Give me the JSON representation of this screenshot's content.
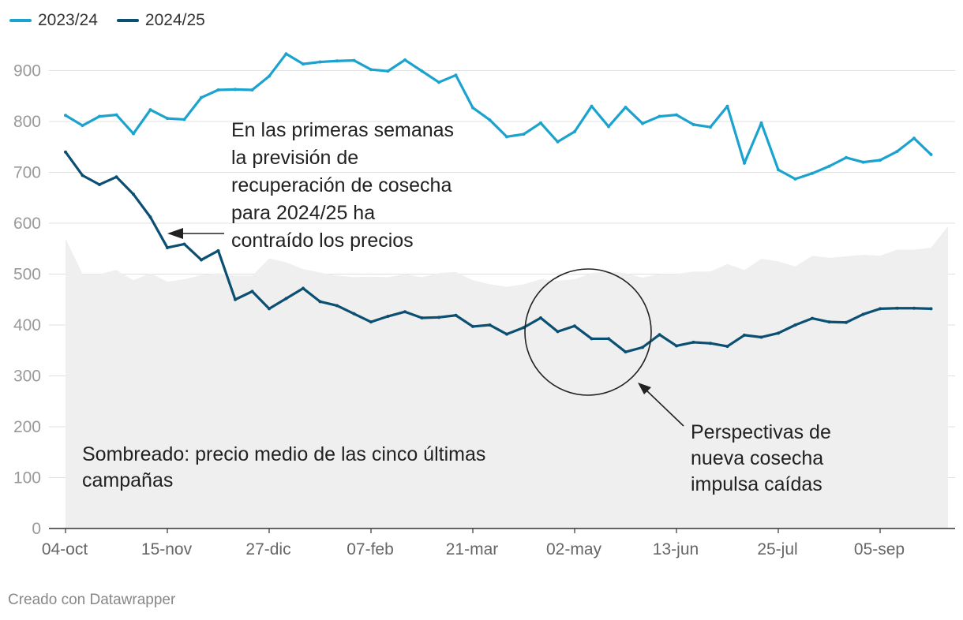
{
  "legend": [
    {
      "name": "2023/24",
      "color": "#1ba3cf"
    },
    {
      "name": "2024/25",
      "color": "#0b4f72"
    }
  ],
  "chart_data": {
    "type": "line",
    "x_unit": "week",
    "x_labels": [
      {
        "week": 0,
        "label": "04-oct"
      },
      {
        "week": 6,
        "label": "15-nov"
      },
      {
        "week": 12,
        "label": "27-dic"
      },
      {
        "week": 18,
        "label": "07-feb"
      },
      {
        "week": 24,
        "label": "21-mar"
      },
      {
        "week": 30,
        "label": "02-may"
      },
      {
        "week": 36,
        "label": "13-jun"
      },
      {
        "week": 42,
        "label": "25-jul"
      },
      {
        "week": 48,
        "label": "05-sep"
      }
    ],
    "ylim": [
      0,
      950
    ],
    "yticks": [
      0,
      100,
      200,
      300,
      400,
      500,
      600,
      700,
      800,
      900
    ],
    "series": [
      {
        "name": "2023/24",
        "color": "#1ba3cf",
        "values": [
          812,
          792,
          810,
          813,
          776,
          823,
          806,
          804,
          847,
          862,
          863,
          862,
          889,
          933,
          913,
          917,
          919,
          920,
          902,
          899,
          921,
          899,
          877,
          891,
          827,
          803,
          770,
          775,
          797,
          760,
          780,
          830,
          790,
          828,
          796,
          810,
          813,
          794,
          789,
          830,
          718,
          797,
          705,
          687,
          698,
          712,
          729,
          720,
          724,
          741,
          767,
          735
        ]
      },
      {
        "name": "2024/25",
        "color": "#0b4f72",
        "values": [
          740,
          694,
          676,
          691,
          657,
          612,
          552,
          559,
          528,
          546,
          450,
          466,
          432,
          452,
          472,
          446,
          438,
          422,
          406,
          417,
          426,
          414,
          415,
          419,
          397,
          400,
          382,
          395,
          414,
          387,
          398,
          373,
          373,
          347,
          356,
          381,
          359,
          366,
          364,
          358,
          380,
          376,
          384,
          400,
          413,
          406,
          405,
          421,
          432,
          433,
          433,
          432
        ]
      },
      {
        "name": "Sombreado: precio medio de las cinco últimas campañas",
        "type": "area",
        "color": "#efefef",
        "values": [
          570,
          500,
          500,
          508,
          488,
          502,
          485,
          490,
          498,
          502,
          497,
          497,
          531,
          523,
          510,
          503,
          497,
          494,
          495,
          494,
          500,
          494,
          502,
          504,
          488,
          480,
          475,
          480,
          490,
          487,
          490,
          502,
          505,
          502,
          493,
          500,
          500,
          505,
          505,
          520,
          508,
          530,
          525,
          515,
          536,
          532,
          535,
          538,
          536,
          548,
          548,
          552,
          594
        ]
      }
    ],
    "annotations": [
      {
        "text": [
          "En las primeras semanas",
          "la previsión de",
          "recuperación de cosecha",
          "para 2024/25 ha",
          "contraído los precios"
        ]
      },
      {
        "text": [
          "Perspectivas de",
          "nueva cosecha",
          "impulsa caídas"
        ]
      },
      {
        "text": [
          "Sombreado: precio medio de las cinco últimas",
          "campañas"
        ]
      }
    ]
  },
  "footer": "Creado con Datawrapper"
}
